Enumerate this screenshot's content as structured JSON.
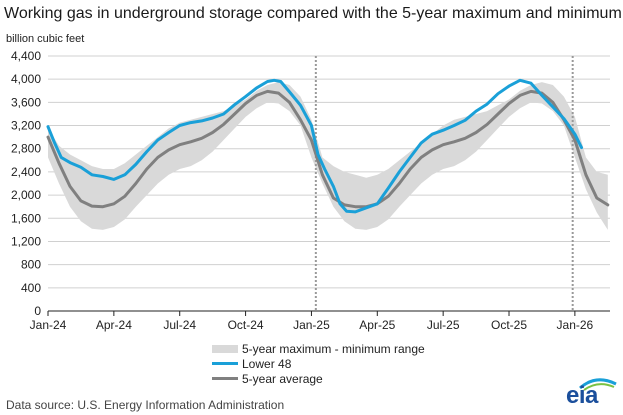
{
  "title": "Working gas in underground  storage compared with the 5-year maximum and minimum",
  "unit_label": "billion cubic feet",
  "source": "Data source:  U.S. Energy Information Administration",
  "logo_text": "eia",
  "colors": {
    "lower48": "#1aa0d8",
    "average": "#808080",
    "range": "#d9d9d9",
    "grid": "#d0d0d0",
    "divider": "#999999"
  },
  "legend": {
    "range": "5-year maximum - minimum range",
    "lower48": "Lower 48",
    "average": "5-year average"
  },
  "chart_data": {
    "type": "area",
    "xlabel": "",
    "ylabel": "billion cubic feet",
    "ylim": [
      0,
      4400
    ],
    "yticks": [
      "0",
      "400",
      "800",
      "1,200",
      "1,600",
      "2,000",
      "2,400",
      "2,800",
      "3,200",
      "3,600",
      "4,000",
      "4,400"
    ],
    "xlim": [
      0,
      25
    ],
    "xticks": [
      {
        "x": 0,
        "label": "Jan-24"
      },
      {
        "x": 3,
        "label": "Apr-24"
      },
      {
        "x": 6,
        "label": "Jul-24"
      },
      {
        "x": 9,
        "label": "Oct-24"
      },
      {
        "x": 12,
        "label": "Jan-25"
      },
      {
        "x": 15,
        "label": "Apr-25"
      },
      {
        "x": 18,
        "label": "Jul-25"
      },
      {
        "x": 21,
        "label": "Oct-25"
      },
      {
        "x": 24,
        "label": "Jan-26"
      }
    ],
    "year_dividers": [
      12.2,
      23.9
    ],
    "x_note": "x values are months since Jan-24",
    "series": [
      {
        "name": "5-year maximum",
        "x": [
          0,
          0.5,
          1,
          1.5,
          2,
          2.5,
          3,
          3.5,
          4,
          4.5,
          5,
          5.5,
          6,
          6.5,
          7,
          7.5,
          8,
          8.5,
          9,
          9.5,
          10,
          10.5,
          11,
          11.5,
          12,
          12.5,
          13,
          13.5,
          14,
          14.5,
          15,
          15.5,
          16,
          16.5,
          17,
          17.5,
          18,
          18.5,
          19,
          19.5,
          20,
          20.5,
          21,
          21.5,
          22,
          22.5,
          23,
          23.5,
          24,
          24.5,
          25,
          25.5
        ],
        "values": [
          3150,
          2850,
          2700,
          2600,
          2500,
          2450,
          2450,
          2550,
          2700,
          2850,
          3000,
          3150,
          3250,
          3300,
          3350,
          3400,
          3450,
          3550,
          3650,
          3800,
          3900,
          3950,
          3900,
          3700,
          3300,
          2650,
          2500,
          2400,
          2350,
          2300,
          2350,
          2450,
          2600,
          2750,
          2900,
          3050,
          3200,
          3300,
          3350,
          3400,
          3450,
          3550,
          3650,
          3800,
          3900,
          3950,
          3900,
          3700,
          3350,
          2650,
          2400,
          2350
        ]
      },
      {
        "name": "5-year minimum",
        "x": [
          0,
          0.5,
          1,
          1.5,
          2,
          2.5,
          3,
          3.5,
          4,
          4.5,
          5,
          5.5,
          6,
          6.5,
          7,
          7.5,
          8,
          8.5,
          9,
          9.5,
          10,
          10.5,
          11,
          11.5,
          12,
          12.5,
          13,
          13.5,
          14,
          14.5,
          15,
          15.5,
          16,
          16.5,
          17,
          17.5,
          18,
          18.5,
          19,
          19.5,
          20,
          20.5,
          21,
          21.5,
          22,
          22.5,
          23,
          23.5,
          24,
          24.5,
          25,
          25.5
        ],
        "values": [
          2650,
          2200,
          1800,
          1550,
          1420,
          1400,
          1450,
          1580,
          1800,
          2000,
          2200,
          2350,
          2450,
          2500,
          2600,
          2750,
          2950,
          3150,
          3350,
          3500,
          3600,
          3580,
          3450,
          3200,
          2650,
          2200,
          1800,
          1550,
          1420,
          1400,
          1450,
          1580,
          1800,
          2000,
          2200,
          2350,
          2450,
          2500,
          2600,
          2750,
          2950,
          3150,
          3350,
          3500,
          3600,
          3580,
          3450,
          3200,
          2650,
          2100,
          1700,
          1400
        ]
      },
      {
        "name": "Lower 48",
        "x": [
          0,
          0.3,
          0.6,
          1,
          1.5,
          2,
          2.5,
          3,
          3.5,
          4,
          4.5,
          5,
          5.5,
          6,
          6.5,
          7,
          7.5,
          8,
          8.5,
          9,
          9.5,
          10,
          10.3,
          10.6,
          11,
          11.5,
          12,
          12.3,
          12.6,
          13,
          13.3,
          13.6,
          14,
          14.5,
          15,
          15.5,
          16,
          16.5,
          17,
          17.5,
          18,
          18.5,
          19,
          19.5,
          20,
          20.5,
          21,
          21.5,
          22,
          22.5,
          23,
          23.5,
          24,
          24.3
        ],
        "values": [
          3180,
          2900,
          2650,
          2560,
          2480,
          2350,
          2320,
          2270,
          2350,
          2530,
          2750,
          2950,
          3080,
          3200,
          3250,
          3280,
          3330,
          3400,
          3560,
          3700,
          3850,
          3960,
          3980,
          3960,
          3780,
          3550,
          3200,
          2700,
          2450,
          2150,
          1850,
          1720,
          1710,
          1780,
          1850,
          2120,
          2400,
          2650,
          2900,
          3050,
          3120,
          3200,
          3290,
          3450,
          3570,
          3750,
          3880,
          3980,
          3930,
          3720,
          3520,
          3320,
          3050,
          2820
        ]
      },
      {
        "name": "5-year average",
        "x": [
          0,
          0.5,
          1,
          1.5,
          2,
          2.5,
          3,
          3.5,
          4,
          4.5,
          5,
          5.5,
          6,
          6.5,
          7,
          7.5,
          8,
          8.5,
          9,
          9.5,
          10,
          10.5,
          11,
          11.5,
          12,
          12.5,
          13,
          13.5,
          14,
          14.5,
          15,
          15.5,
          16,
          16.5,
          17,
          17.5,
          18,
          18.5,
          19,
          19.5,
          20,
          20.5,
          21,
          21.5,
          22,
          22.5,
          23,
          23.5,
          24,
          24.5,
          25,
          25.5
        ],
        "values": [
          3000,
          2550,
          2150,
          1900,
          1810,
          1800,
          1850,
          1980,
          2200,
          2450,
          2650,
          2780,
          2870,
          2920,
          2980,
          3080,
          3220,
          3400,
          3580,
          3720,
          3790,
          3760,
          3600,
          3300,
          2950,
          2350,
          1950,
          1830,
          1800,
          1800,
          1850,
          1980,
          2200,
          2450,
          2650,
          2780,
          2870,
          2920,
          2980,
          3080,
          3220,
          3400,
          3580,
          3720,
          3790,
          3760,
          3600,
          3300,
          2950,
          2350,
          1950,
          1830
        ]
      }
    ]
  }
}
